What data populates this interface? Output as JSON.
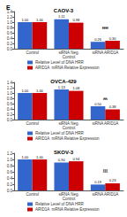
{
  "chart_data": [
    {
      "type": "bar",
      "title": "CAOV-3",
      "categories": [
        "Control",
        "siRNA Neg.\nControl",
        "siRNA ARID1A"
      ],
      "series": [
        {
          "name": "Relative Level of DNA HRR",
          "color": "#3366cc",
          "values": [
            1.0,
            1.11,
            0.26
          ],
          "value_labels": [
            "1.00",
            "1.11",
            "0.26"
          ]
        },
        {
          "name": "ARID1A  mRNA Relative Expression",
          "color": "#cc0000",
          "values": [
            1.0,
            0.98,
            0.3
          ],
          "value_labels": [
            "1.00",
            "0.98",
            "0.30"
          ]
        }
      ],
      "ylim": [
        0,
        1.4
      ],
      "yticks": [
        {
          "value": 0,
          "label": "0.0"
        },
        0.2,
        0.4,
        0.6,
        0.8,
        {
          "value": 1,
          "label": "1.0"
        },
        1.2,
        1.4
      ],
      "grid": false,
      "legend": "bottom",
      "data_labels": true,
      "annotations": [
        {
          "text": "E"
        },
        {
          "text": "****",
          "x": "siRNA ARID1A",
          "y": 0.68
        },
        {
          "text": "****",
          "x": "siRNA ARID1A",
          "y": 0.62
        }
      ]
    },
    {
      "type": "bar",
      "title": "OVCA-429",
      "categories": [
        "Control",
        "siRNA Neg.\nControl",
        "siRNA ARID1A"
      ],
      "series": [
        {
          "name": "Relative Level of DNA HRR",
          "color": "#3366cc",
          "values": [
            1.0,
            1.13,
            0.5
          ],
          "value_labels": [
            "1.00",
            "1.13",
            "0.50"
          ]
        },
        {
          "name": "ARID1A  mRNA Relative Expression",
          "color": "#cc0000",
          "values": [
            1.0,
            1.08,
            0.38
          ],
          "value_labels": [
            "1.00",
            "1.08",
            "0.38"
          ]
        }
      ],
      "ylim": [
        0,
        1.4
      ],
      "yticks": [
        {
          "value": 0,
          "label": "0.0"
        },
        0.2,
        0.4,
        0.6,
        0.8,
        {
          "value": 1,
          "label": "1.0"
        },
        1.2,
        1.4
      ],
      "grid": false,
      "legend": "bottom",
      "data_labels": true,
      "annotations": [
        {
          "text": "**",
          "x": "siRNA ARID1A",
          "y": 0.68
        },
        {
          "text": "***",
          "x": "siRNA ARID1A",
          "y": 0.62
        }
      ]
    },
    {
      "type": "bar",
      "title": "SKOV-3",
      "categories": [
        "Control",
        "siRNA Neg.\nControl",
        "siRNA ARID1A"
      ],
      "series": [
        {
          "name": "Relative Level of DNA HRR",
          "color": "#3366cc",
          "values": [
            1.0,
            0.9,
            0.19
          ],
          "value_labels": [
            "1.00",
            "0.90",
            "0.19"
          ]
        },
        {
          "name": "ARID1A  mRNA Relative Expression",
          "color": "#cc0000",
          "values": [
            1.0,
            0.94,
            0.23
          ],
          "value_labels": [
            "1.00",
            "0.94",
            "0.23"
          ]
        }
      ],
      "ylim": [
        0,
        1.2
      ],
      "yticks": [
        {
          "value": 0,
          "label": "0.0"
        },
        0.2,
        0.4,
        0.6,
        0.8,
        {
          "value": 1,
          "label": "1.0"
        },
        1.2
      ],
      "grid": false,
      "legend": "bottom",
      "data_labels": true,
      "annotations": [
        {
          "text": "***",
          "x": "siRNA ARID1A",
          "y": 0.54
        },
        {
          "text": "***",
          "x": "siRNA ARID1A",
          "y": 0.48
        }
      ]
    }
  ]
}
